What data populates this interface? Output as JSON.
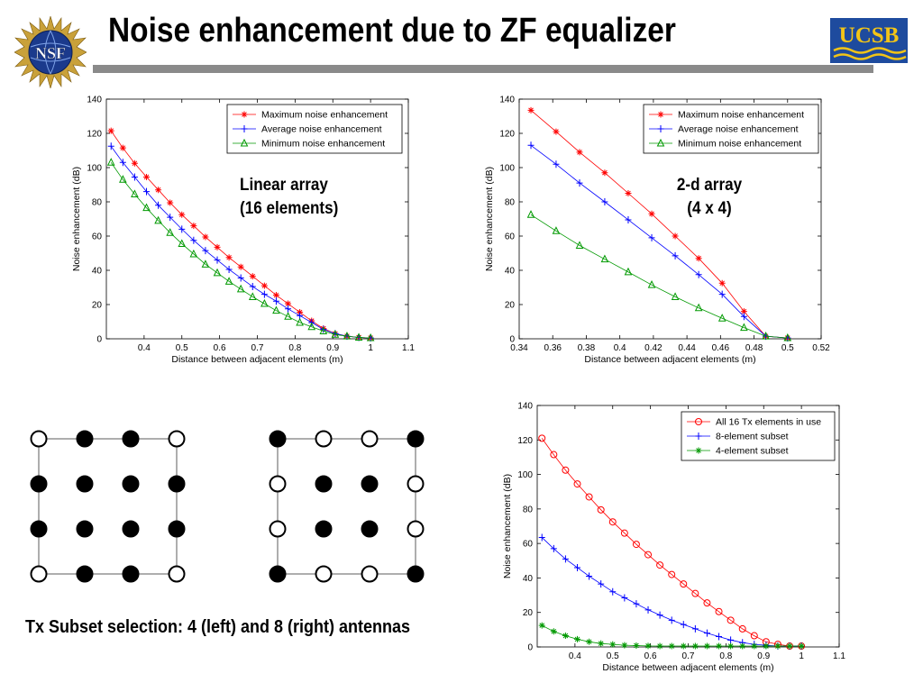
{
  "slide": {
    "title": "Noise enhancement due to ZF equalizer",
    "logo_left": "NSF",
    "logo_right": "UCSB",
    "caption_linear_line1": "Linear array",
    "caption_linear_line2": "(16 elements)",
    "caption_2d_line1": "2-d array",
    "caption_2d_line2": "(4 x 4)",
    "subset_caption": "Tx Subset selection: 4 (left) and 8 (right) antennas"
  },
  "grids": {
    "left": [
      [
        0,
        1,
        1,
        0
      ],
      [
        1,
        1,
        1,
        1
      ],
      [
        1,
        1,
        1,
        1
      ],
      [
        0,
        1,
        1,
        0
      ]
    ],
    "right": [
      [
        1,
        0,
        0,
        1
      ],
      [
        0,
        1,
        1,
        0
      ],
      [
        0,
        1,
        1,
        0
      ],
      [
        1,
        0,
        0,
        1
      ]
    ]
  },
  "chart_data": [
    {
      "type": "line",
      "xlabel": "Distance between adjacent elements (m)",
      "ylabel": "Noise enhancement (dB)",
      "xlim": [
        0.3,
        1.1
      ],
      "ylim": [
        0,
        140
      ],
      "xticks": [
        0.4,
        0.5,
        0.6,
        0.7,
        0.8,
        0.9,
        1,
        1.1
      ],
      "yticks": [
        0,
        20,
        40,
        60,
        80,
        100,
        120,
        140
      ],
      "legend": "top-right",
      "series": [
        {
          "name": "Maximum noise enhancement",
          "color": "#ff0000",
          "marker": "star",
          "x": [
            0.3125,
            0.3438,
            0.375,
            0.4063,
            0.4375,
            0.4688,
            0.5,
            0.5313,
            0.5625,
            0.5938,
            0.625,
            0.6563,
            0.6875,
            0.7188,
            0.75,
            0.7813,
            0.8125,
            0.8438,
            0.875,
            0.9063,
            0.9375,
            0.9688,
            1.0
          ],
          "y": [
            121.5,
            111.5,
            102.5,
            94.5,
            87,
            79.5,
            72.5,
            66,
            59.5,
            53.5,
            47.5,
            42,
            36.5,
            31,
            25.5,
            20.5,
            15.5,
            10.5,
            6,
            3,
            1.5,
            0.8,
            0.5
          ]
        },
        {
          "name": "Average noise enhancement",
          "color": "#0000ff",
          "marker": "plus",
          "x": [
            0.3125,
            0.3438,
            0.375,
            0.4063,
            0.4375,
            0.4688,
            0.5,
            0.5313,
            0.5625,
            0.5938,
            0.625,
            0.6563,
            0.6875,
            0.7188,
            0.75,
            0.7813,
            0.8125,
            0.8438,
            0.875,
            0.9063,
            0.9375,
            0.9688,
            1.0
          ],
          "y": [
            112.5,
            103,
            94.5,
            86,
            78,
            71,
            64,
            57.5,
            51.5,
            46,
            40.5,
            35.5,
            30.5,
            26,
            22,
            17.5,
            13.5,
            9.5,
            5.5,
            3,
            1.5,
            0.8,
            0.5
          ]
        },
        {
          "name": "Minimum noise enhancement",
          "color": "#009900",
          "marker": "triangle",
          "x": [
            0.3125,
            0.3438,
            0.375,
            0.4063,
            0.4375,
            0.4688,
            0.5,
            0.5313,
            0.5625,
            0.5938,
            0.625,
            0.6563,
            0.6875,
            0.7188,
            0.75,
            0.7813,
            0.8125,
            0.8438,
            0.875,
            0.9063,
            0.9375,
            0.9688,
            1.0
          ],
          "y": [
            103,
            93,
            84.5,
            76.5,
            69,
            62,
            55.5,
            49.5,
            43.5,
            38.5,
            33.5,
            29,
            24.5,
            20.5,
            16.5,
            13,
            9.5,
            7,
            4.5,
            2.5,
            1.5,
            0.8,
            0.5
          ]
        }
      ]
    },
    {
      "type": "line",
      "xlabel": "Distance between adjacent elements (m)",
      "ylabel": "Noise enhancement (dB)",
      "xlim": [
        0.34,
        0.52
      ],
      "ylim": [
        0,
        140
      ],
      "xticks": [
        0.34,
        0.36,
        0.38,
        0.4,
        0.42,
        0.44,
        0.46,
        0.48,
        0.5,
        0.52
      ],
      "yticks": [
        0,
        20,
        40,
        60,
        80,
        100,
        120,
        140
      ],
      "legend": "top-right",
      "series": [
        {
          "name": "Maximum noise enhancement",
          "color": "#ff0000",
          "marker": "star",
          "x": [
            0.347,
            0.362,
            0.376,
            0.391,
            0.405,
            0.419,
            0.433,
            0.447,
            0.461,
            0.474,
            0.487,
            0.5
          ],
          "y": [
            133.5,
            121,
            109,
            97,
            85,
            73,
            60,
            47,
            32.5,
            16,
            1.5,
            0.5
          ]
        },
        {
          "name": "Average noise enhancement",
          "color": "#0000ff",
          "marker": "plus",
          "x": [
            0.347,
            0.362,
            0.376,
            0.391,
            0.405,
            0.419,
            0.433,
            0.447,
            0.461,
            0.474,
            0.487,
            0.5
          ],
          "y": [
            113,
            102,
            91,
            80,
            69.5,
            59,
            48.5,
            37.5,
            26,
            13,
            1.5,
            0.5
          ]
        },
        {
          "name": "Minimum noise enhancement",
          "color": "#009900",
          "marker": "triangle",
          "x": [
            0.347,
            0.362,
            0.376,
            0.391,
            0.405,
            0.419,
            0.433,
            0.447,
            0.461,
            0.474,
            0.487,
            0.5
          ],
          "y": [
            72.5,
            63,
            54.5,
            46.5,
            39,
            31.5,
            24.5,
            18,
            12,
            6.5,
            1.5,
            0.5
          ]
        }
      ]
    },
    {
      "type": "line",
      "xlabel": "Distance between adjacent elements (m)",
      "ylabel": "Noise enhancement (dB)",
      "xlim": [
        0.3,
        1.1
      ],
      "ylim": [
        0,
        140
      ],
      "xticks": [
        0.4,
        0.5,
        0.6,
        0.7,
        0.8,
        0.9,
        1,
        1.1
      ],
      "yticks": [
        0,
        20,
        40,
        60,
        80,
        100,
        120,
        140
      ],
      "legend": "top-right",
      "series": [
        {
          "name": "All 16 Tx elements in use",
          "color": "#ff0000",
          "marker": "circle",
          "x": [
            0.3125,
            0.3438,
            0.375,
            0.4063,
            0.4375,
            0.4688,
            0.5,
            0.5313,
            0.5625,
            0.5938,
            0.625,
            0.6563,
            0.6875,
            0.7188,
            0.75,
            0.7813,
            0.8125,
            0.8438,
            0.875,
            0.9063,
            0.9375,
            0.9688,
            1.0
          ],
          "y": [
            121,
            111.5,
            102.5,
            94.5,
            87,
            79.5,
            72.5,
            66,
            59.5,
            53.5,
            47.5,
            42,
            36.5,
            31,
            25.5,
            20.5,
            15.5,
            10.5,
            6.5,
            3,
            1.5,
            0.5,
            0.5
          ]
        },
        {
          "name": "8-element subset",
          "color": "#0000ff",
          "marker": "plus",
          "x": [
            0.3125,
            0.3438,
            0.375,
            0.4063,
            0.4375,
            0.4688,
            0.5,
            0.5313,
            0.5625,
            0.5938,
            0.625,
            0.6563,
            0.6875,
            0.7188,
            0.75,
            0.7813,
            0.8125,
            0.8438,
            0.875,
            0.9063,
            0.9375,
            0.9688,
            1.0
          ],
          "y": [
            63.5,
            57,
            51,
            46,
            41,
            36.5,
            32,
            28.5,
            25,
            21.5,
            18.5,
            15.5,
            13,
            10.5,
            8,
            6,
            4,
            2.5,
            1.5,
            1,
            0.5,
            0.5,
            0.5
          ]
        },
        {
          "name": "4-element subset",
          "color": "#009900",
          "marker": "star",
          "x": [
            0.3125,
            0.3438,
            0.375,
            0.4063,
            0.4375,
            0.4688,
            0.5,
            0.5313,
            0.5625,
            0.5938,
            0.625,
            0.6563,
            0.6875,
            0.7188,
            0.75,
            0.7813,
            0.8125,
            0.8438,
            0.875,
            0.9063,
            0.9375,
            0.9688,
            1.0
          ],
          "y": [
            12.5,
            9,
            6.5,
            4.5,
            3,
            2,
            1.5,
            1,
            0.8,
            0.6,
            0.5,
            0.5,
            0.5,
            0.5,
            0.5,
            0.5,
            0.5,
            0.5,
            0.5,
            0.5,
            0.5,
            0.5,
            0.5
          ]
        }
      ]
    }
  ]
}
